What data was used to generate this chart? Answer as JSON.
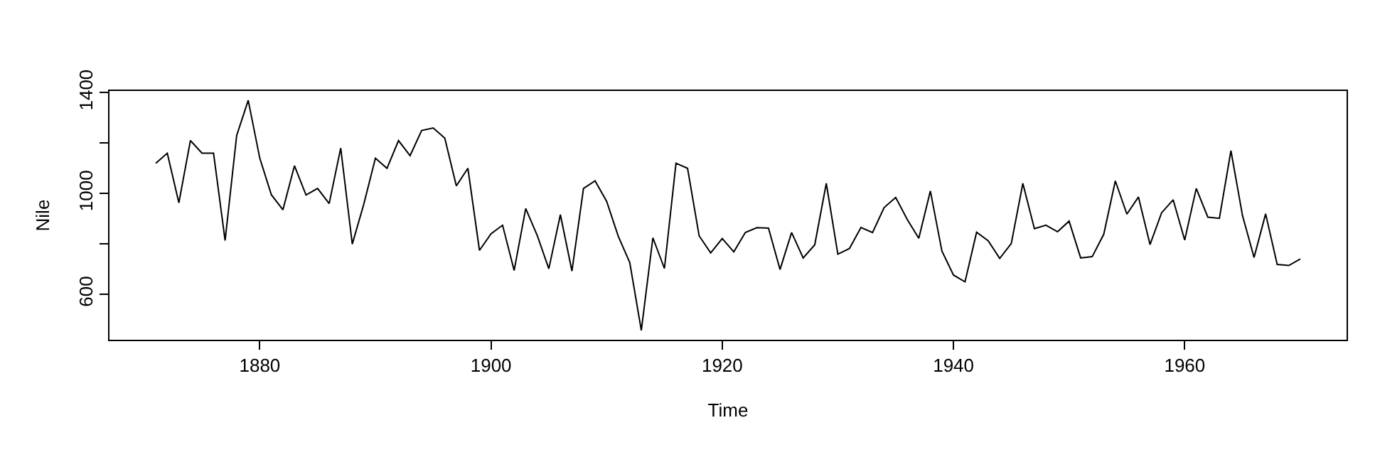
{
  "chart_data": {
    "type": "line",
    "xlabel": "Time",
    "ylabel": "Nile",
    "x": [
      1871,
      1872,
      1873,
      1874,
      1875,
      1876,
      1877,
      1878,
      1879,
      1880,
      1881,
      1882,
      1883,
      1884,
      1885,
      1886,
      1887,
      1888,
      1889,
      1890,
      1891,
      1892,
      1893,
      1894,
      1895,
      1896,
      1897,
      1898,
      1899,
      1900,
      1901,
      1902,
      1903,
      1904,
      1905,
      1906,
      1907,
      1908,
      1909,
      1910,
      1911,
      1912,
      1913,
      1914,
      1915,
      1916,
      1917,
      1918,
      1919,
      1920,
      1921,
      1922,
      1923,
      1924,
      1925,
      1926,
      1927,
      1928,
      1929,
      1930,
      1931,
      1932,
      1933,
      1934,
      1935,
      1936,
      1937,
      1938,
      1939,
      1940,
      1941,
      1942,
      1943,
      1944,
      1945,
      1946,
      1947,
      1948,
      1949,
      1950,
      1951,
      1952,
      1953,
      1954,
      1955,
      1956,
      1957,
      1958,
      1959,
      1960,
      1961,
      1962,
      1963,
      1964,
      1965,
      1966,
      1967,
      1968,
      1969,
      1970
    ],
    "series": [
      {
        "color": "#000000",
        "values": [
          1120,
          1160,
          963,
          1210,
          1160,
          1160,
          813,
          1230,
          1370,
          1140,
          995,
          935,
          1110,
          994,
          1020,
          960,
          1180,
          799,
          958,
          1140,
          1100,
          1210,
          1150,
          1250,
          1260,
          1220,
          1030,
          1100,
          774,
          840,
          874,
          694,
          940,
          833,
          701,
          916,
          692,
          1020,
          1050,
          969,
          831,
          726,
          456,
          824,
          702,
          1120,
          1100,
          832,
          764,
          821,
          768,
          845,
          864,
          862,
          698,
          845,
          744,
          796,
          1040,
          759,
          781,
          865,
          845,
          944,
          984,
          897,
          822,
          1010,
          771,
          676,
          649,
          846,
          812,
          742,
          801,
          1040,
          860,
          874,
          848,
          890,
          744,
          749,
          838,
          1050,
          918,
          986,
          797,
          923,
          975,
          815,
          1020,
          906,
          901,
          1170,
          912,
          746,
          919,
          718,
          714,
          740
        ]
      }
    ],
    "xlim": [
      1867,
      1974
    ],
    "ylim": [
      419,
      1407
    ],
    "xticks": [
      1880,
      1900,
      1920,
      1940,
      1960
    ],
    "yticks": [
      600,
      {
        "value": 800,
        "label": null
      },
      1000,
      {
        "value": 1200,
        "label": null
      },
      1400
    ],
    "line_style": "solid",
    "marker": "none"
  }
}
